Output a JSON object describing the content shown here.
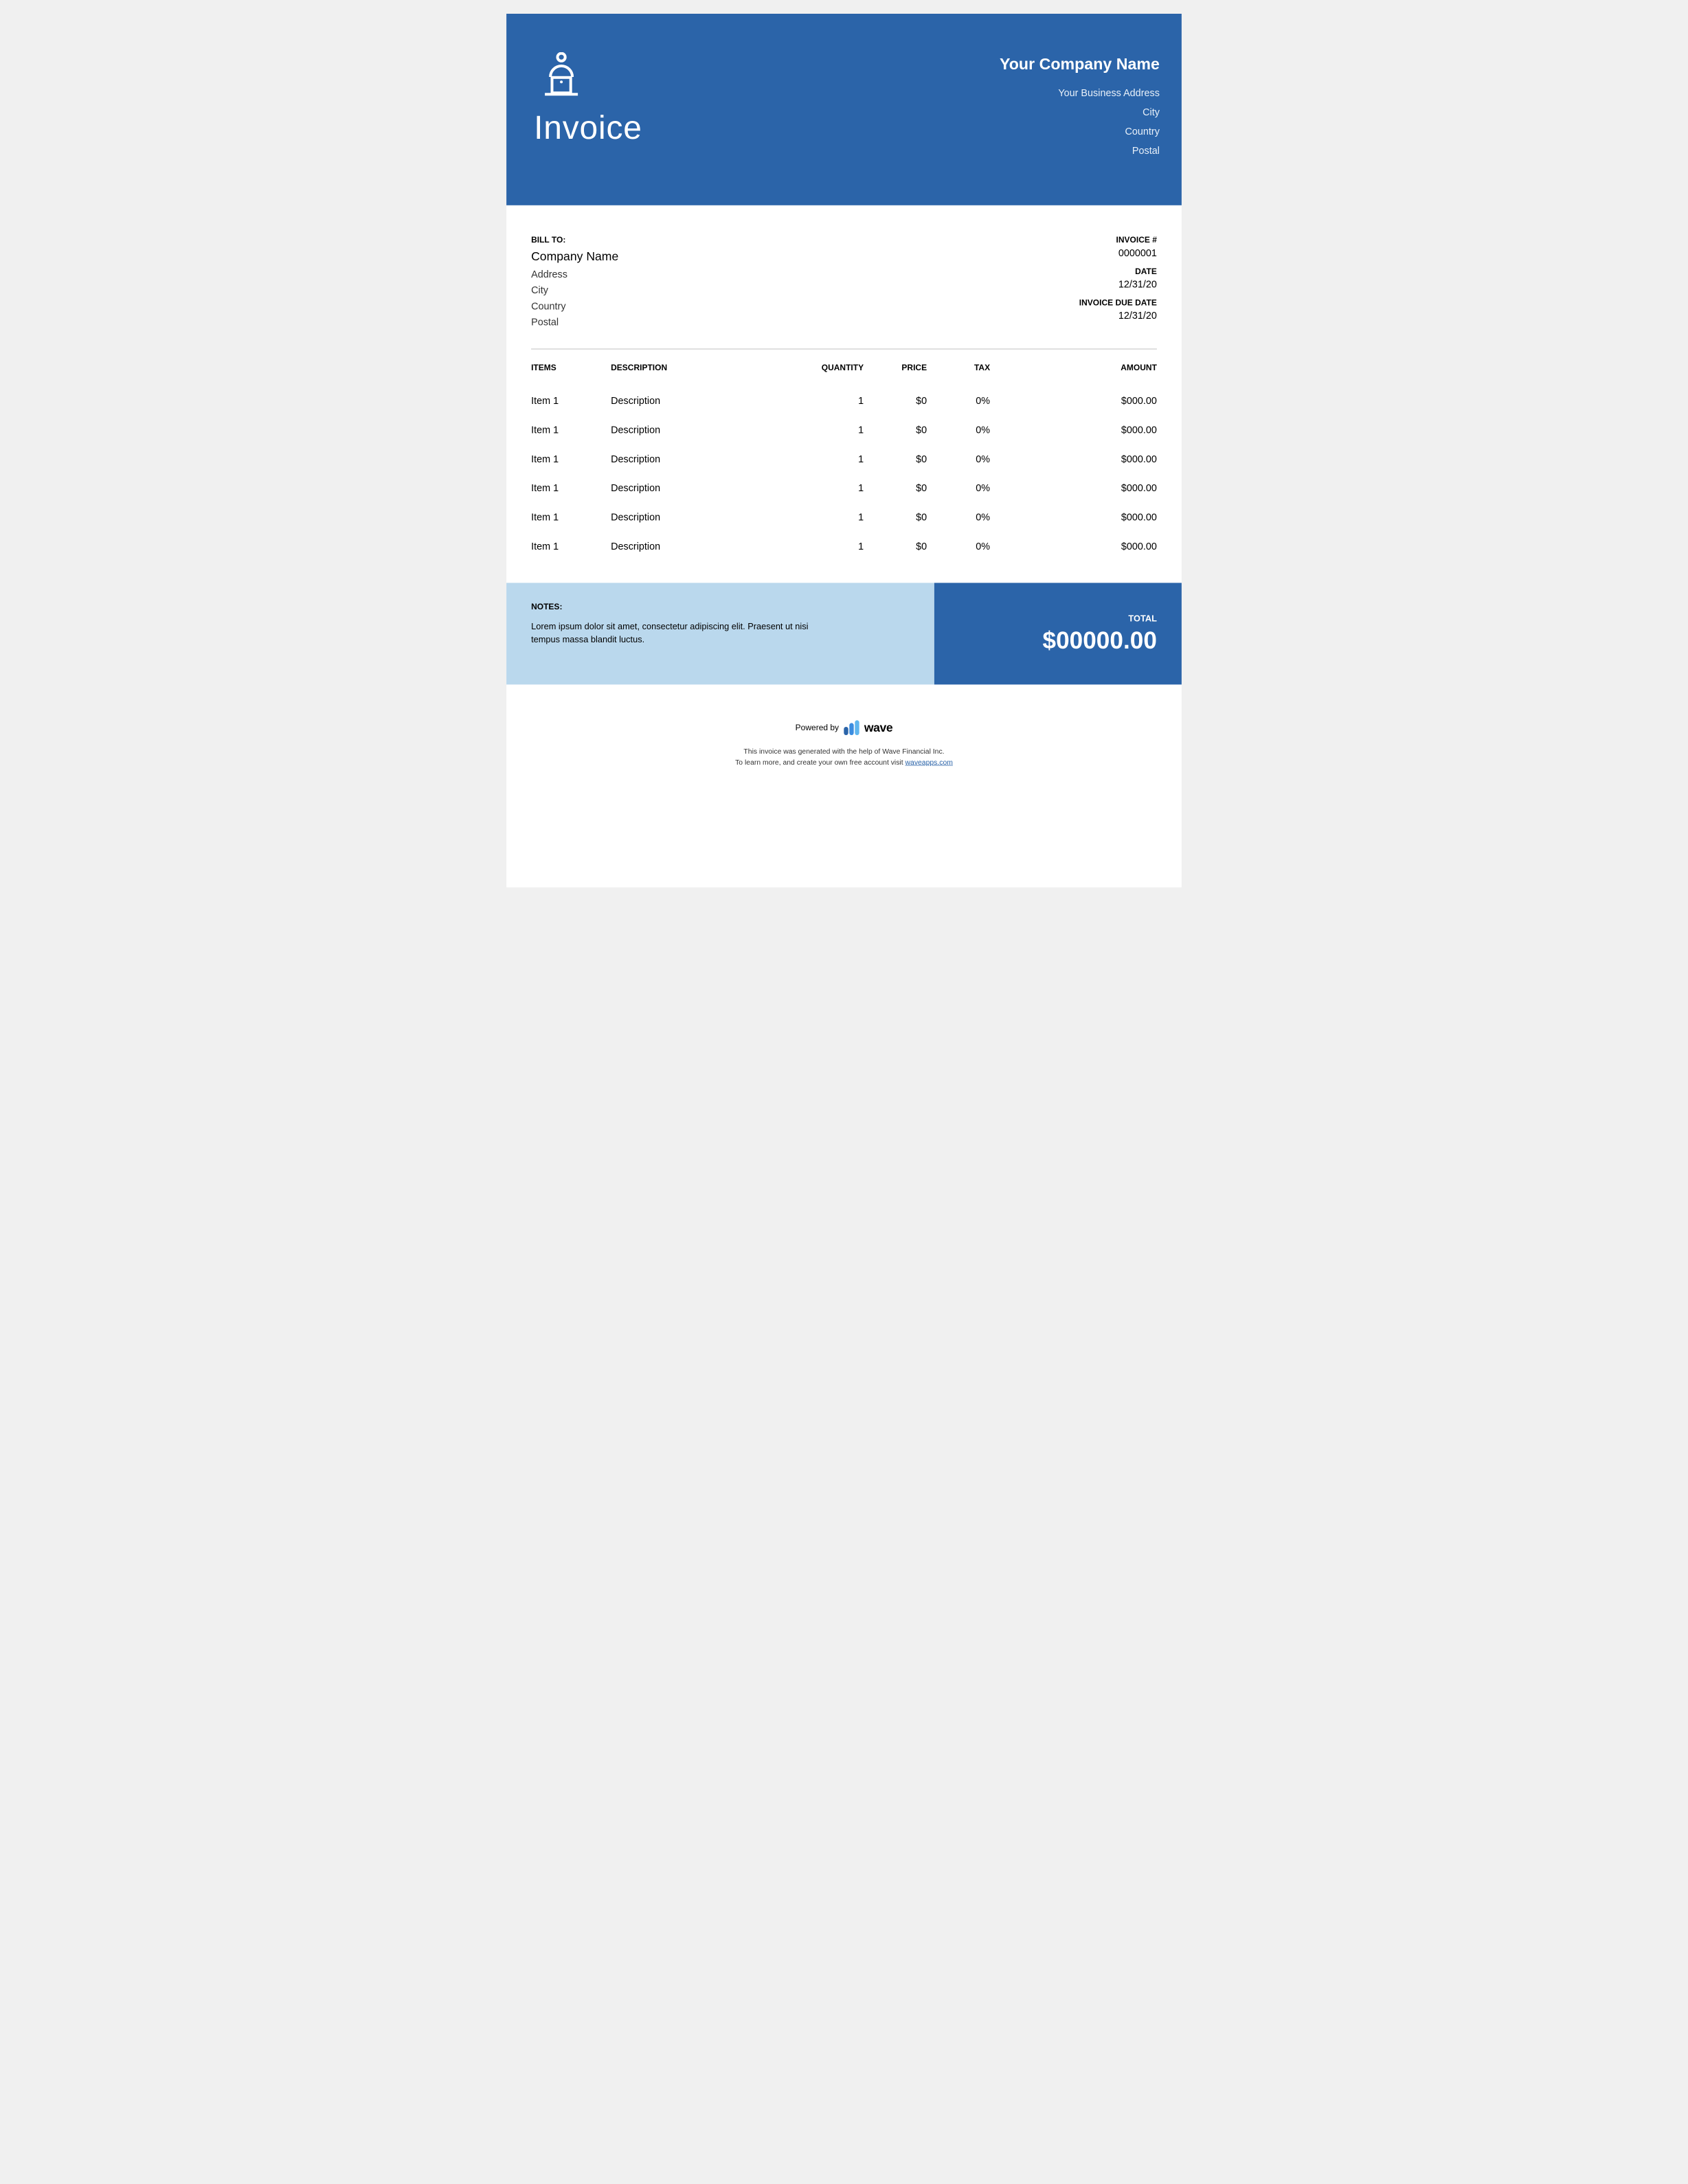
{
  "colors": {
    "header_bg": "#2b64a9",
    "notes_bg": "#bad8ed",
    "total_bg": "#2b64a9",
    "page_bg": "#ffffff",
    "text_light": "#e8f0f9",
    "divider": "#b0b0b0",
    "link": "#2b64a9"
  },
  "header": {
    "title": "Invoice",
    "company_name": "Your Company Name",
    "address_lines": [
      "Your Business Address",
      "City",
      "Country",
      "Postal"
    ]
  },
  "bill_to": {
    "label": "BILL TO:",
    "company": "Company Name",
    "lines": [
      "Address",
      "City",
      "Country",
      "Postal"
    ]
  },
  "invoice_meta": {
    "number_label": "INVOICE #",
    "number": "0000001",
    "date_label": "DATE",
    "date": "12/31/20",
    "due_label": "INVOICE DUE DATE",
    "due": "12/31/20"
  },
  "table": {
    "columns": [
      "ITEMS",
      "DESCRIPTION",
      "QUANTITY",
      "PRICE",
      "TAX",
      "AMOUNT"
    ],
    "rows": [
      {
        "item": "Item 1",
        "description": "Description",
        "quantity": "1",
        "price": "$0",
        "tax": "0%",
        "amount": "$000.00"
      },
      {
        "item": "Item 1",
        "description": "Description",
        "quantity": "1",
        "price": "$0",
        "tax": "0%",
        "amount": "$000.00"
      },
      {
        "item": "Item 1",
        "description": "Description",
        "quantity": "1",
        "price": "$0",
        "tax": "0%",
        "amount": "$000.00"
      },
      {
        "item": "Item 1",
        "description": "Description",
        "quantity": "1",
        "price": "$0",
        "tax": "0%",
        "amount": "$000.00"
      },
      {
        "item": "Item 1",
        "description": "Description",
        "quantity": "1",
        "price": "$0",
        "tax": "0%",
        "amount": "$000.00"
      },
      {
        "item": "Item 1",
        "description": "Description",
        "quantity": "1",
        "price": "$0",
        "tax": "0%",
        "amount": "$000.00"
      }
    ]
  },
  "notes": {
    "label": "NOTES:",
    "text": "Lorem ipsum dolor sit amet, consectetur adipiscing elit. Praesent ut nisi tempus massa blandit luctus."
  },
  "total": {
    "label": "TOTAL",
    "amount": "$00000.00"
  },
  "powered": {
    "prefix": "Powered by",
    "brand": "wave",
    "line1": "This invoice was generated with the help of Wave Financial Inc.",
    "line2_prefix": "To learn more, and create your own free account visit ",
    "link_text": "waveapps.com"
  }
}
